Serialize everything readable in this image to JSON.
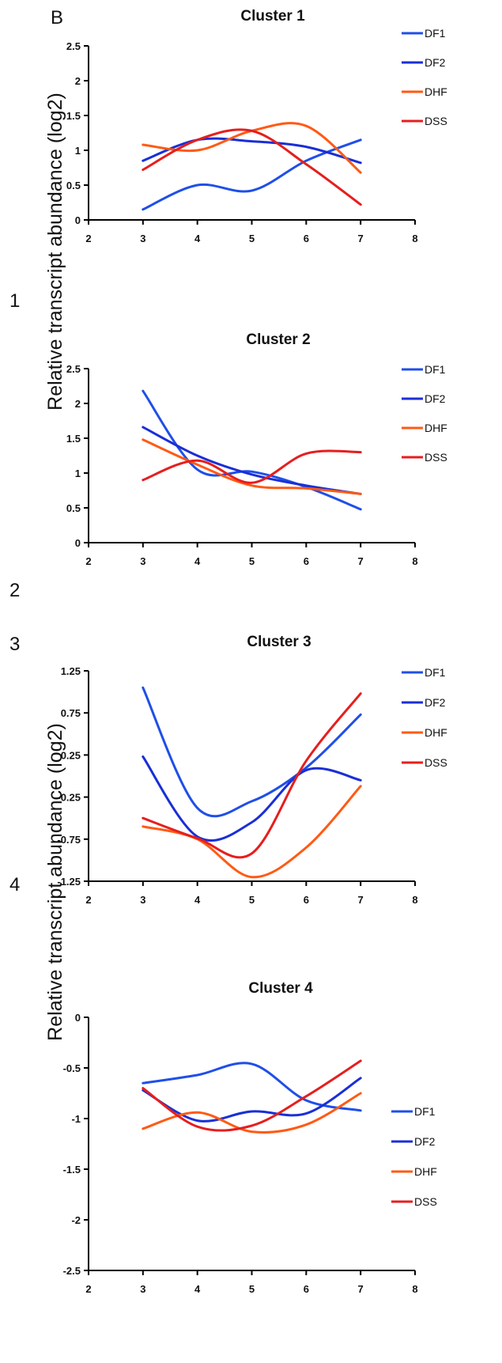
{
  "figure": {
    "panel_label": "B",
    "side_numbers": [
      "1",
      "2",
      "3",
      "4"
    ],
    "ylabels": [
      "Relative transcript abundance (log2)",
      "Relative transcript abundance (log2)"
    ]
  },
  "colors": {
    "DF1": "#1f4fe8",
    "DF2": "#1a2fd6",
    "DHF": "#ff5a14",
    "DSS": "#e61e1e"
  },
  "chart_data": [
    {
      "type": "line",
      "title": "Cluster 1",
      "xlim": [
        2,
        8
      ],
      "xticks": [
        "2",
        "3",
        "4",
        "5",
        "6",
        "7",
        "8"
      ],
      "ylim": [
        0,
        2.5
      ],
      "yticks": [
        "0",
        "0.5",
        "1",
        "1.5",
        "2",
        "2.5"
      ],
      "legend_position": "top-right",
      "x": [
        3,
        4,
        5,
        6,
        7
      ],
      "series": [
        {
          "name": "DF1",
          "values": [
            0.15,
            0.5,
            0.42,
            0.85,
            1.15
          ]
        },
        {
          "name": "DF2",
          "values": [
            0.85,
            1.15,
            1.13,
            1.05,
            0.82
          ]
        },
        {
          "name": "DHF",
          "values": [
            1.08,
            1.0,
            1.28,
            1.35,
            0.68
          ]
        },
        {
          "name": "DSS",
          "values": [
            0.72,
            1.15,
            1.28,
            0.8,
            0.22
          ]
        }
      ]
    },
    {
      "type": "line",
      "title": "Cluster 2",
      "xlim": [
        2,
        8
      ],
      "xticks": [
        "2",
        "3",
        "4",
        "5",
        "6",
        "7",
        "8"
      ],
      "ylim": [
        0,
        2.5
      ],
      "yticks": [
        "0",
        "0.5",
        "1",
        "1.5",
        "2",
        "2.5"
      ],
      "legend_position": "top-right",
      "x": [
        3,
        4,
        5,
        6,
        7
      ],
      "series": [
        {
          "name": "DF1",
          "values": [
            2.18,
            1.05,
            1.02,
            0.8,
            0.48
          ]
        },
        {
          "name": "DF2",
          "values": [
            1.66,
            1.25,
            0.98,
            0.82,
            0.7
          ]
        },
        {
          "name": "DHF",
          "values": [
            1.48,
            1.12,
            0.82,
            0.78,
            0.7
          ]
        },
        {
          "name": "DSS",
          "values": [
            0.9,
            1.18,
            0.86,
            1.28,
            1.3
          ]
        }
      ]
    },
    {
      "type": "line",
      "title": "Cluster 3",
      "xlim": [
        2,
        8
      ],
      "xticks": [
        "2",
        "3",
        "4",
        "5",
        "6",
        "7",
        "8"
      ],
      "ylim": [
        -1.25,
        1.25
      ],
      "yticks": [
        "-1.25",
        "-0.75",
        "-0.25",
        "0.25",
        "0.75",
        "1.25"
      ],
      "legend_position": "top-right",
      "x": [
        3,
        4,
        5,
        6,
        7
      ],
      "series": [
        {
          "name": "DF1",
          "values": [
            1.05,
            -0.38,
            -0.3,
            0.1,
            0.73
          ]
        },
        {
          "name": "DF2",
          "values": [
            0.23,
            -0.72,
            -0.55,
            0.07,
            -0.05
          ]
        },
        {
          "name": "DHF",
          "values": [
            -0.6,
            -0.75,
            -1.2,
            -0.85,
            -0.12
          ]
        },
        {
          "name": "DSS",
          "values": [
            -0.5,
            -0.74,
            -0.92,
            0.18,
            0.98
          ]
        }
      ]
    },
    {
      "type": "line",
      "title": "Cluster 4",
      "xlim": [
        2,
        8
      ],
      "xticks": [
        "2",
        "3",
        "4",
        "5",
        "6",
        "7",
        "8"
      ],
      "ylim": [
        -2.5,
        0
      ],
      "yticks": [
        "-2.5",
        "-2",
        "-1.5",
        "-1",
        "-0.5",
        "0"
      ],
      "legend_position": "right",
      "x": [
        3,
        4,
        5,
        6,
        7
      ],
      "series": [
        {
          "name": "DF1",
          "values": [
            -0.65,
            -0.57,
            -0.46,
            -0.82,
            -0.92
          ]
        },
        {
          "name": "DF2",
          "values": [
            -0.72,
            -1.02,
            -0.93,
            -0.95,
            -0.6
          ]
        },
        {
          "name": "DHF",
          "values": [
            -1.1,
            -0.94,
            -1.13,
            -1.06,
            -0.75
          ]
        },
        {
          "name": "DSS",
          "values": [
            -0.7,
            -1.08,
            -1.07,
            -0.78,
            -0.43
          ]
        }
      ]
    }
  ]
}
